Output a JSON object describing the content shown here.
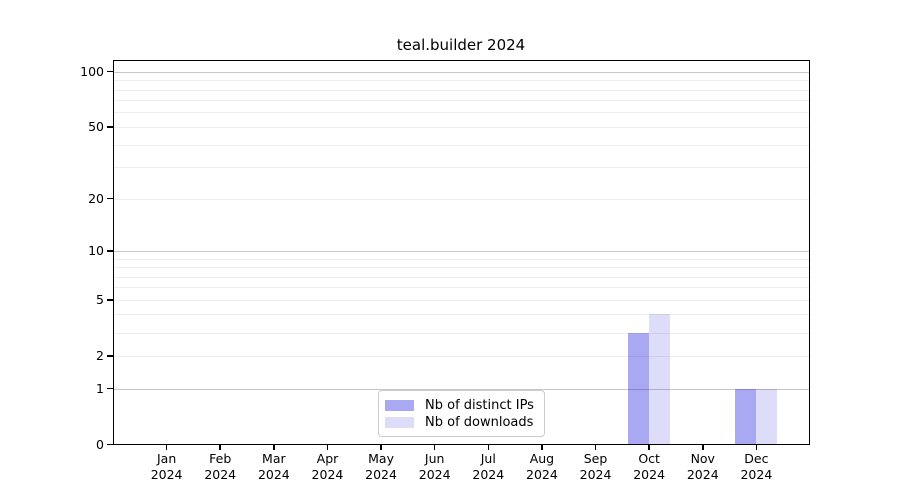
{
  "chart_data": {
    "type": "bar",
    "title": "teal.builder 2024",
    "categories": [
      "Jan",
      "Feb",
      "Mar",
      "Apr",
      "May",
      "Jun",
      "Jul",
      "Aug",
      "Sep",
      "Oct",
      "Nov",
      "Dec"
    ],
    "year_label": "2024",
    "series": [
      {
        "name": "Nb of distinct IPs",
        "color": "rgba(0,0,220,0.34)",
        "values": [
          0,
          0,
          0,
          0,
          0,
          0,
          0,
          0,
          0,
          3,
          0,
          1
        ]
      },
      {
        "name": "Nb of downloads",
        "color": "rgba(0,0,220,0.135)",
        "values": [
          0,
          0,
          0,
          0,
          0,
          0,
          0,
          0,
          0,
          4,
          0,
          1
        ]
      }
    ],
    "xlabel": "",
    "ylabel": "",
    "yscale": "log1p",
    "ylim": [
      0,
      115
    ],
    "yticks": [
      0,
      1,
      2,
      5,
      10,
      20,
      50,
      100
    ],
    "decade_yticks": [
      1,
      10,
      100
    ],
    "minor_yticks": [
      3,
      4,
      6,
      7,
      8,
      9,
      30,
      40,
      60,
      70,
      80,
      90
    ],
    "grid": true,
    "legend_position": "lower center inside",
    "colors": {
      "axis": "#000000",
      "decade_gridline": "#c8c8c8",
      "minor_gridline": "#eeeeee",
      "legend_border": "#cccccc",
      "background": "#ffffff"
    }
  }
}
